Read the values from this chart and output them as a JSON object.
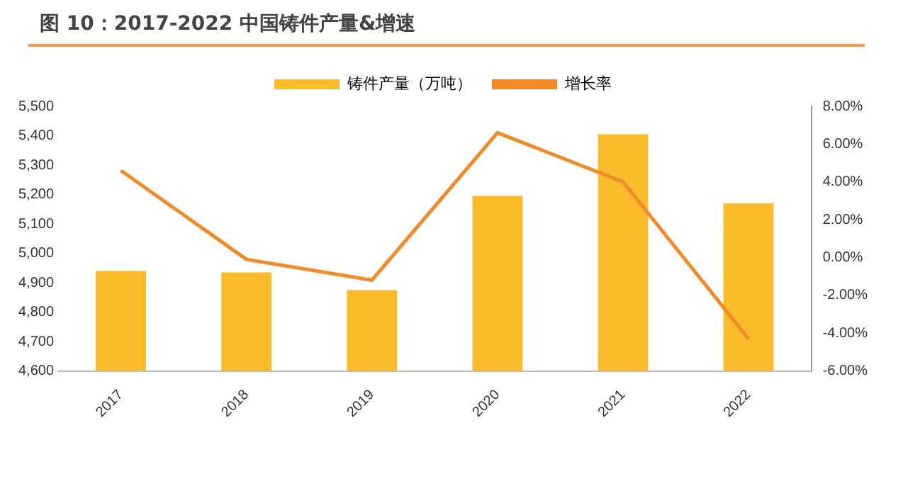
{
  "chart_data": {
    "type": "bar",
    "title": "图 10：2017-2022 中国铸件产量&增速",
    "categories": [
      "2017",
      "2018",
      "2019",
      "2020",
      "2021",
      "2022"
    ],
    "series": [
      {
        "name": "铸件产量（万吨）",
        "color": "#fbbc2c",
        "values": [
          4940,
          4935,
          4875,
          5195,
          5405,
          5170
        ]
      },
      {
        "name": "增长率",
        "type": "line",
        "axis": "y2",
        "color": "#f28a26",
        "values": [
          4.6,
          -0.1,
          -1.2,
          6.6,
          4.0,
          -4.3
        ]
      }
    ],
    "ylim": [
      4600,
      5500
    ],
    "yticks": [
      {
        "value": 4600,
        "label": "4,600"
      },
      {
        "value": 4700,
        "label": "4,700"
      },
      {
        "value": 4800,
        "label": "4,800"
      },
      {
        "value": 4900,
        "label": "4,900"
      },
      {
        "value": 5000,
        "label": "5,000"
      },
      {
        "value": 5100,
        "label": "5,100"
      },
      {
        "value": 5200,
        "label": "5,200"
      },
      {
        "value": 5300,
        "label": "5,300"
      },
      {
        "value": 5400,
        "label": "5,400"
      },
      {
        "value": 5500,
        "label": "5,500"
      }
    ],
    "y2lim": [
      -6,
      8
    ],
    "y2ticks": [
      {
        "value": -6,
        "label": "-6.00%"
      },
      {
        "value": -4,
        "label": "-4.00%"
      },
      {
        "value": -2,
        "label": "-2.00%"
      },
      {
        "value": 0,
        "label": "0.00%"
      },
      {
        "value": 2,
        "label": "2.00%"
      },
      {
        "value": 4,
        "label": "4.00%"
      },
      {
        "value": 6,
        "label": "6.00%"
      },
      {
        "value": 8,
        "label": "8.00%"
      }
    ],
    "grid": false,
    "legend": "top",
    "marker": "none"
  }
}
